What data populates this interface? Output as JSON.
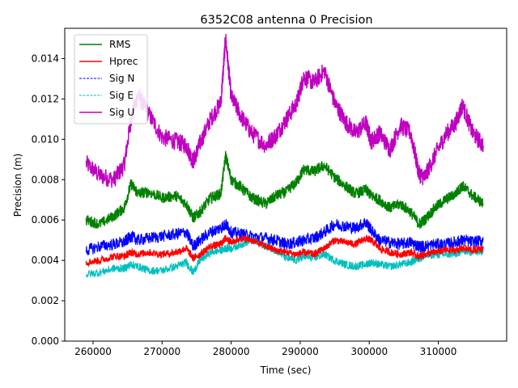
{
  "chart_data": {
    "type": "line",
    "title": "6352C08 antenna 0 Precision",
    "xlabel": "Time (sec)",
    "ylabel": "Precision (m)",
    "xlim": [
      255900,
      319900
    ],
    "ylim": [
      0.0,
      0.0155
    ],
    "x_ticks": [
      260000,
      270000,
      280000,
      290000,
      300000,
      310000
    ],
    "x_tick_labels": [
      "260000",
      "270000",
      "280000",
      "290000",
      "300000",
      "310000"
    ],
    "y_ticks": [
      0.0,
      0.002,
      0.004,
      0.006,
      0.008,
      0.01,
      0.012,
      0.014
    ],
    "y_tick_labels": [
      "0.000",
      "0.002",
      "0.004",
      "0.006",
      "0.008",
      "0.010",
      "0.012",
      "0.014"
    ],
    "grid": false,
    "legend_position": "top-left",
    "x": [
      259000,
      261000,
      263000,
      264500,
      265500,
      266500,
      268000,
      270000,
      272000,
      273500,
      274500,
      275500,
      277000,
      278500,
      279200,
      280000,
      281500,
      283000,
      285000,
      286500,
      288000,
      289500,
      290500,
      292000,
      293500,
      295000,
      296500,
      298000,
      299500,
      300300,
      301500,
      303000,
      304500,
      306000,
      307200,
      308000,
      309500,
      311000,
      312500,
      313500,
      315000,
      316500
    ],
    "series": [
      {
        "name": "RMS",
        "color": "#008000",
        "dash": "solid",
        "values": [
          0.006,
          0.0058,
          0.0062,
          0.0066,
          0.0078,
          0.0073,
          0.0074,
          0.0071,
          0.0072,
          0.0068,
          0.0061,
          0.0064,
          0.0071,
          0.0073,
          0.0092,
          0.008,
          0.0076,
          0.0071,
          0.0068,
          0.0072,
          0.0074,
          0.0079,
          0.0085,
          0.0084,
          0.0087,
          0.0081,
          0.0077,
          0.0073,
          0.0075,
          0.0072,
          0.007,
          0.0066,
          0.0068,
          0.0064,
          0.0058,
          0.006,
          0.0066,
          0.007,
          0.0073,
          0.0077,
          0.0072,
          0.0068
        ]
      },
      {
        "name": "Hprec",
        "color": "#ff0000",
        "dash": "solid",
        "values": [
          0.0039,
          0.004,
          0.0042,
          0.0042,
          0.0044,
          0.0043,
          0.0044,
          0.0043,
          0.0044,
          0.0046,
          0.0041,
          0.0043,
          0.0047,
          0.0048,
          0.0051,
          0.0049,
          0.0051,
          0.005,
          0.0047,
          0.0045,
          0.0044,
          0.0043,
          0.0044,
          0.0043,
          0.0046,
          0.005,
          0.0049,
          0.0048,
          0.0051,
          0.005,
          0.0046,
          0.0044,
          0.0043,
          0.0044,
          0.0042,
          0.0043,
          0.0044,
          0.0045,
          0.0045,
          0.0046,
          0.0045,
          0.0046
        ]
      },
      {
        "name": "Sig N",
        "color": "#0000ff",
        "dash": "dashed",
        "values": [
          0.0045,
          0.0047,
          0.0048,
          0.0049,
          0.0052,
          0.005,
          0.0051,
          0.0052,
          0.0053,
          0.0054,
          0.0047,
          0.005,
          0.0054,
          0.0056,
          0.0058,
          0.0054,
          0.0053,
          0.0052,
          0.0051,
          0.005,
          0.0048,
          0.0049,
          0.005,
          0.0051,
          0.0054,
          0.0058,
          0.0057,
          0.0056,
          0.0059,
          0.0055,
          0.005,
          0.0049,
          0.0048,
          0.0049,
          0.0047,
          0.0047,
          0.0048,
          0.0048,
          0.0049,
          0.005,
          0.0049,
          0.005
        ]
      },
      {
        "name": "Sig E",
        "color": "#00bfbf",
        "dash": "dashed",
        "values": [
          0.0033,
          0.0034,
          0.0036,
          0.0036,
          0.0038,
          0.0037,
          0.0035,
          0.0035,
          0.0037,
          0.0039,
          0.0034,
          0.004,
          0.0044,
          0.0045,
          0.0046,
          0.0046,
          0.0048,
          0.005,
          0.0047,
          0.0045,
          0.0041,
          0.004,
          0.0042,
          0.0041,
          0.0043,
          0.004,
          0.0038,
          0.0037,
          0.0038,
          0.0039,
          0.0038,
          0.0037,
          0.0038,
          0.0039,
          0.0041,
          0.0042,
          0.0043,
          0.0043,
          0.0043,
          0.0045,
          0.0044,
          0.0045
        ]
      },
      {
        "name": "Sig U",
        "color": "#bf00bf",
        "dash": "solid",
        "values": [
          0.0088,
          0.0082,
          0.008,
          0.0087,
          0.011,
          0.0122,
          0.0113,
          0.0101,
          0.0099,
          0.0097,
          0.0089,
          0.0098,
          0.011,
          0.0118,
          0.015,
          0.0121,
          0.0111,
          0.0103,
          0.0097,
          0.0102,
          0.011,
          0.0118,
          0.0131,
          0.0128,
          0.0134,
          0.0118,
          0.0109,
          0.0103,
          0.0108,
          0.0099,
          0.0103,
          0.0095,
          0.0107,
          0.0103,
          0.0083,
          0.0081,
          0.0092,
          0.0102,
          0.0108,
          0.0117,
          0.0103,
          0.0097
        ]
      }
    ]
  }
}
